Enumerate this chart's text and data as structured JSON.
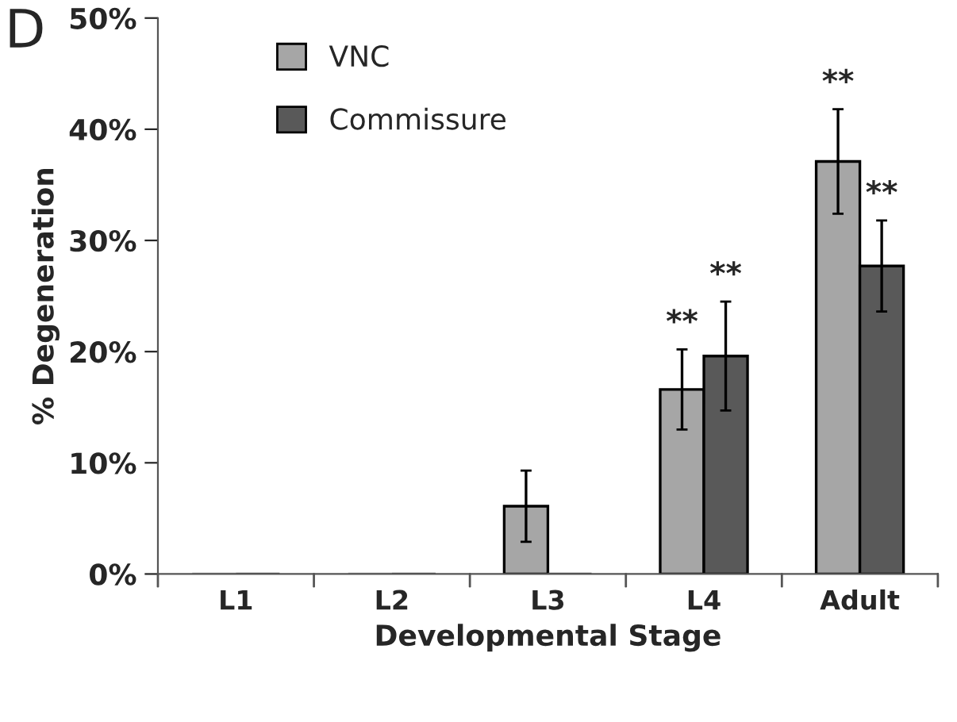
{
  "chart_data": {
    "type": "bar",
    "xlabel": "Developmental Stage",
    "ylabel": "% Degeneration",
    "categories": [
      "L1",
      "L2",
      "L3",
      "L4",
      "Adult"
    ],
    "series": [
      {
        "name": "VNC",
        "color": "#a6a6a6",
        "values": [
          0,
          0,
          6.1,
          16.6,
          37.1
        ],
        "errors": [
          null,
          null,
          3.2,
          3.6,
          4.7
        ],
        "value_labels": [
          null,
          null,
          null,
          "**",
          "**"
        ]
      },
      {
        "name": "Commissure",
        "color": "#595959",
        "values": [
          0,
          0,
          0,
          19.6,
          27.7
        ],
        "errors": [
          null,
          null,
          null,
          4.9,
          4.1
        ],
        "value_labels": [
          null,
          null,
          null,
          "**",
          "**"
        ]
      }
    ],
    "ylim": [
      0,
      50
    ],
    "yticks": [
      {
        "value": 0,
        "label": "0%"
      },
      {
        "value": 10,
        "label": "10%"
      },
      {
        "value": 20,
        "label": "20%"
      },
      {
        "value": 30,
        "label": "30%"
      },
      {
        "value": 40,
        "label": "40%"
      },
      {
        "value": 50,
        "label": "50%"
      }
    ],
    "grid": false,
    "legend": "top left",
    "annotations": [
      "D"
    ]
  }
}
